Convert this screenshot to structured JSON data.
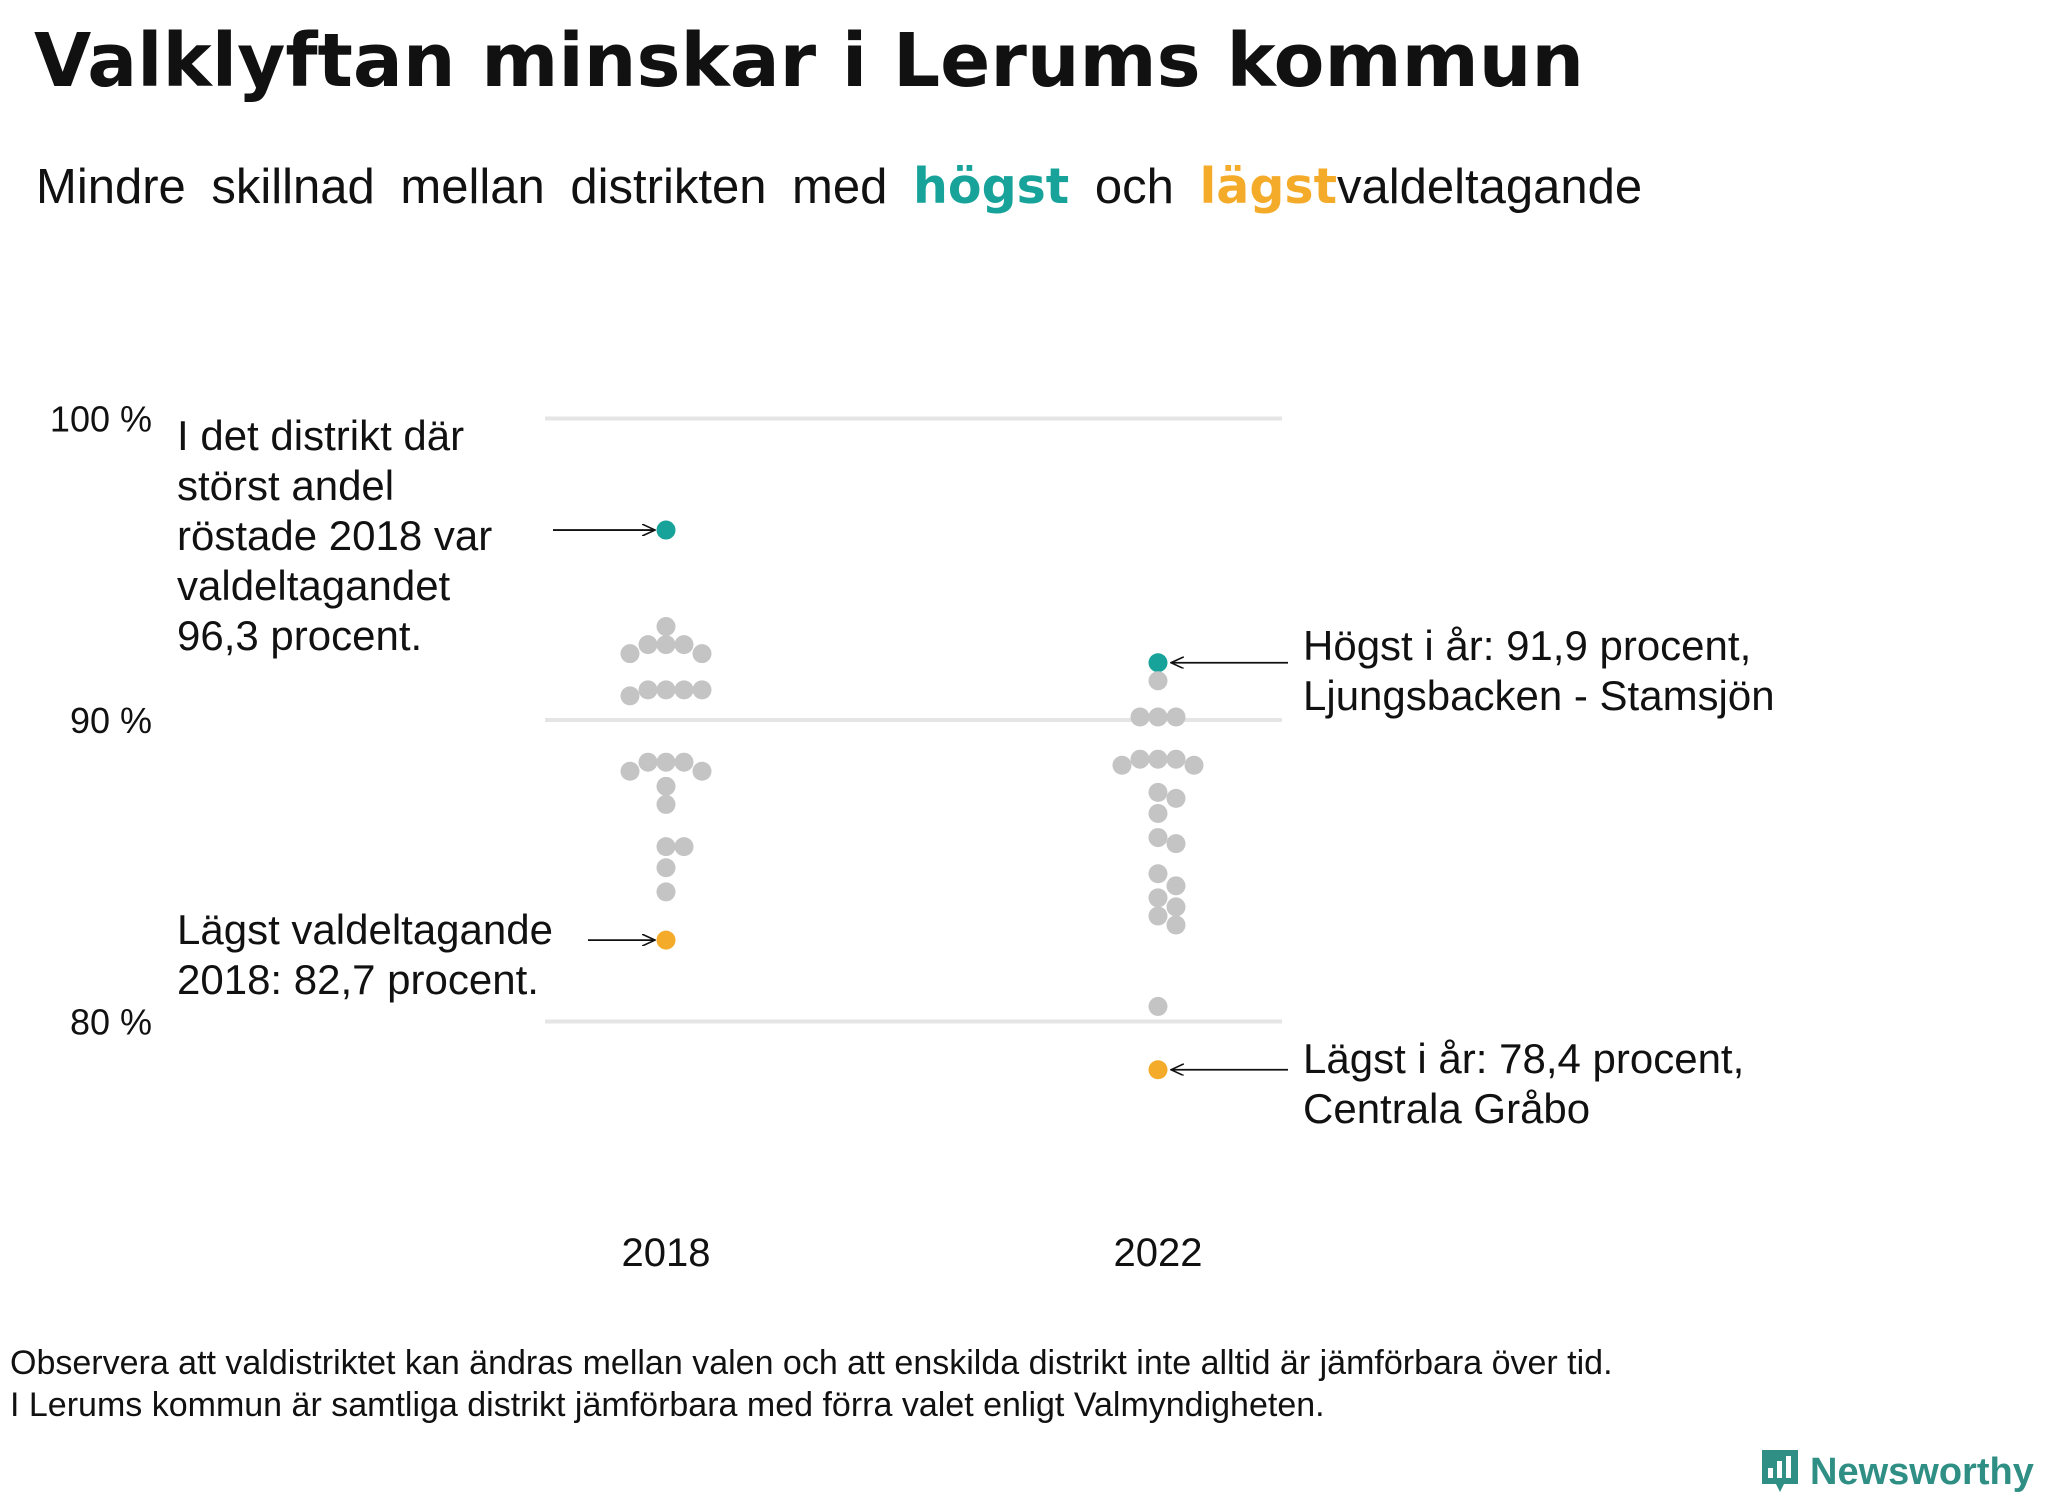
{
  "title": "Valklyftan minskar i Lerums kommun",
  "subtitle": {
    "part1": "Mindre skillnad mellan distrikten med",
    "high_word": "högst",
    "mid": "och",
    "low_word": "lägst",
    "part2": "valdeltagande"
  },
  "colors": {
    "high": "#17a39a",
    "low": "#f5ab2a",
    "other": "#c4c4c4",
    "grid": "#e5e5e5"
  },
  "chart_data": {
    "type": "scatter",
    "title": "Valklyftan minskar i Lerums kommun",
    "xlabel": "",
    "ylabel": "",
    "categories": [
      "2018",
      "2022"
    ],
    "ylim": [
      75,
      102
    ],
    "y_ticks": [
      80,
      90,
      100
    ],
    "y_tick_labels": [
      "80 %",
      "90 %",
      "100 %"
    ],
    "grid": true,
    "series": [
      {
        "category": "2018",
        "high": 96.3,
        "low": 82.7,
        "values": [
          93.1,
          92.5,
          92.5,
          92.5,
          92.2,
          92.2,
          91.0,
          91.0,
          91.0,
          91.0,
          90.8,
          88.6,
          88.6,
          88.6,
          88.3,
          88.3,
          87.8,
          87.2,
          85.8,
          85.8,
          85.1,
          84.3
        ]
      },
      {
        "category": "2022",
        "high": 91.9,
        "low": 78.4,
        "values": [
          91.3,
          90.1,
          90.1,
          90.1,
          88.7,
          88.7,
          88.7,
          88.5,
          88.5,
          87.6,
          87.4,
          86.9,
          86.1,
          85.9,
          84.9,
          84.5,
          84.1,
          83.8,
          83.5,
          83.2,
          80.5
        ]
      }
    ],
    "annotations": {
      "high_2018": [
        "I det distrikt där",
        "störst andel",
        "röstade 2018 var",
        "valdeltagandet",
        "96,3 procent."
      ],
      "low_2018": [
        "Lägst valdeltagande",
        "2018: 82,7 procent."
      ],
      "high_2022": [
        "Högst i år: 91,9 procent,",
        "Ljungsbacken - Stamsjön"
      ],
      "low_2022": [
        "Lägst i år: 78,4 procent,",
        "Centrala Gråbo"
      ]
    }
  },
  "footnote": [
    "Observera att valdistriktet kan ändras mellan valen och att enskilda distrikt inte alltid är jämförbara över tid.",
    "I Lerums kommun är samtliga distrikt jämförbara med förra valet enligt Valmyndigheten."
  ],
  "brand": {
    "name": "Newsworthy",
    "icon": "newsworthy-logo-icon"
  }
}
